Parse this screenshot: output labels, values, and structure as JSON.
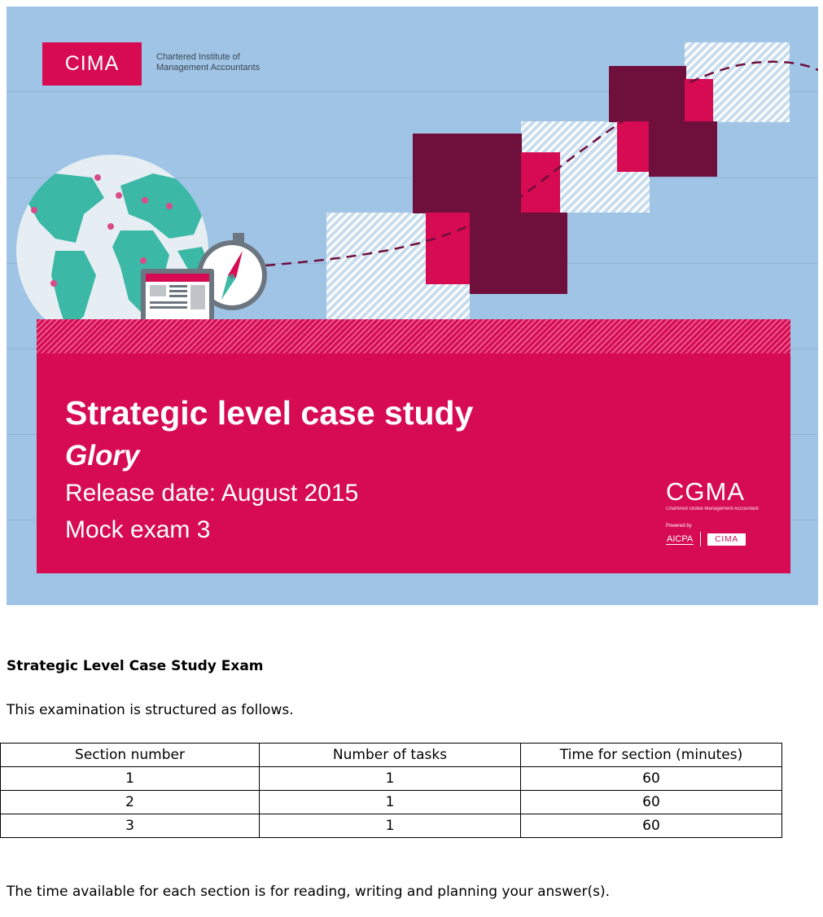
{
  "cover": {
    "logo": {
      "mark": "CIMA",
      "name_line1": "Chartered Institute of",
      "name_line2": "Management Accountants"
    },
    "title": "Strategic level case study",
    "subtitle": "Glory",
    "release": "Release date: August 2015",
    "mock": "Mock exam 3",
    "cgma": {
      "mark": "CGMA",
      "tagline": "Chartered Global Management Accountant",
      "powered": "Powered by",
      "aicpa": "AICPA",
      "cima": "CIMA"
    },
    "colors": {
      "sky": "#9fc4e6",
      "pink": "#d60b52",
      "maroon": "#6e0f3c",
      "globe": "#3cb8a6"
    }
  },
  "doc": {
    "heading": "Strategic Level Case Study Exam",
    "intro": "This examination is structured as follows.",
    "table": {
      "headers": [
        "Section number",
        "Number of tasks",
        "Time for section (minutes)"
      ],
      "rows": [
        [
          "1",
          "1",
          "60"
        ],
        [
          "2",
          "1",
          "60"
        ],
        [
          "3",
          "1",
          "60"
        ]
      ]
    },
    "note": "The time available for each section is for reading, writing and planning your answer(s)."
  }
}
